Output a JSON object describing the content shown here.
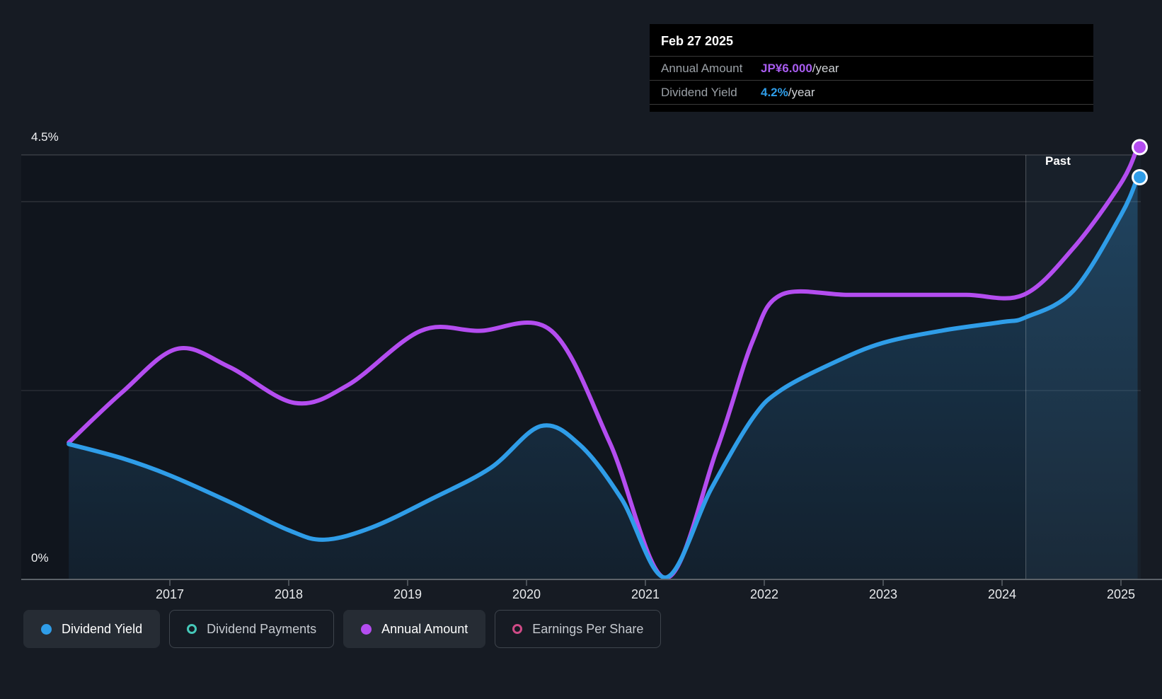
{
  "page": {
    "background": "#161b23"
  },
  "tooltip": {
    "date": "Feb 27 2025",
    "rows": [
      {
        "label": "Annual Amount",
        "value": "JP¥6.000",
        "suffix": "/year",
        "color": "#a85cf0"
      },
      {
        "label": "Dividend Yield",
        "value": "4.2%",
        "suffix": "/year",
        "color": "#2f9de8"
      }
    ]
  },
  "labels": {
    "past": "Past",
    "y_axis_top": "4.5%",
    "y_axis_bottom": "0%"
  },
  "legend": [
    {
      "label": "Dividend Yield",
      "color": "#2f9de8",
      "style": "filled",
      "active": true
    },
    {
      "label": "Dividend Payments",
      "color": "#45c8b8",
      "style": "ring",
      "active": false
    },
    {
      "label": "Annual Amount",
      "color": "#b44df0",
      "style": "filled",
      "active": true
    },
    {
      "label": "Earnings Per Share",
      "color": "#cf4a86",
      "style": "ring",
      "active": false
    }
  ],
  "chart_data": {
    "type": "line",
    "title": "Dividend yield and payments history",
    "x_axis": {
      "tick_years": [
        2017,
        2018,
        2019,
        2020,
        2021,
        2022,
        2023,
        2024,
        2025
      ],
      "range": [
        2016.15,
        2025.35
      ]
    },
    "y_axes": {
      "yield": {
        "unit": "%",
        "range": [
          0,
          4.5
        ],
        "tick_labels": [
          "0%",
          "4.5%"
        ]
      },
      "amount": {
        "unit": "JP¥/year",
        "range": [
          0,
          6.0
        ]
      }
    },
    "grid": {
      "horizontal_lines_at_yield_pct": [
        4.5,
        4.0,
        2.0,
        0.0
      ],
      "legend_position": "bottom-left"
    },
    "past_region_start_year": 2024.2,
    "series": [
      {
        "name": "Dividend Yield",
        "axis": "yield",
        "unit": "%",
        "color": "#2f9de8",
        "area": true,
        "end_marker": true,
        "points": [
          [
            2016.15,
            1.43
          ],
          [
            2016.6,
            1.28
          ],
          [
            2017.0,
            1.1
          ],
          [
            2017.5,
            0.82
          ],
          [
            2018.0,
            0.52
          ],
          [
            2018.3,
            0.42
          ],
          [
            2018.7,
            0.55
          ],
          [
            2019.2,
            0.85
          ],
          [
            2019.7,
            1.18
          ],
          [
            2020.12,
            1.62
          ],
          [
            2020.45,
            1.42
          ],
          [
            2020.8,
            0.85
          ],
          [
            2021.17,
            0.02
          ],
          [
            2021.55,
            0.95
          ],
          [
            2021.9,
            1.7
          ],
          [
            2022.14,
            2.0
          ],
          [
            2022.6,
            2.3
          ],
          [
            2023.0,
            2.5
          ],
          [
            2023.5,
            2.63
          ],
          [
            2024.0,
            2.72
          ],
          [
            2024.2,
            2.77
          ],
          [
            2024.6,
            3.05
          ],
          [
            2025.0,
            3.85
          ],
          [
            2025.14,
            4.25
          ]
        ]
      },
      {
        "name": "Annual Amount",
        "axis": "amount",
        "unit": "JP¥",
        "color": "#b44df0",
        "area": false,
        "end_marker": true,
        "points": [
          [
            2016.15,
            1.9
          ],
          [
            2016.6,
            2.6
          ],
          [
            2017.06,
            3.2
          ],
          [
            2017.5,
            2.95
          ],
          [
            2018.05,
            2.45
          ],
          [
            2018.5,
            2.7
          ],
          [
            2019.11,
            3.45
          ],
          [
            2019.6,
            3.45
          ],
          [
            2020.21,
            3.45
          ],
          [
            2020.7,
            1.9
          ],
          [
            2021.17,
            0.02
          ],
          [
            2021.6,
            1.8
          ],
          [
            2021.9,
            3.3
          ],
          [
            2022.14,
            3.95
          ],
          [
            2022.7,
            3.95
          ],
          [
            2023.2,
            3.95
          ],
          [
            2023.7,
            3.95
          ],
          [
            2024.18,
            3.95
          ],
          [
            2024.6,
            4.6
          ],
          [
            2025.0,
            5.5
          ],
          [
            2025.14,
            6.0
          ]
        ]
      }
    ]
  }
}
